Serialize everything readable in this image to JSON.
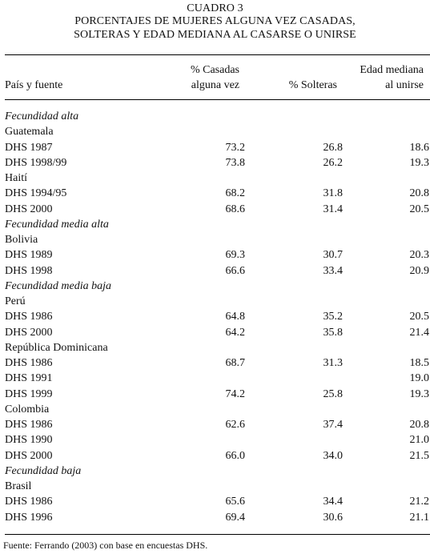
{
  "title": {
    "line1": "CUADRO 3",
    "line2": "PORCENTAJES DE MUJERES ALGUNA VEZ CASADAS,",
    "line3": "SOLTERAS Y EDAD MEDIANA AL CASARSE O UNIRSE"
  },
  "headers": {
    "col0": "País y fuente",
    "col1_line1": "% Casadas",
    "col1_line2": "alguna vez",
    "col2": "% Solteras",
    "col3_line1": "Edad mediana",
    "col3_line2": "al unirse"
  },
  "rows": [
    {
      "type": "group",
      "label": "Fecundidad alta",
      "v1": "",
      "v2": "",
      "v3": ""
    },
    {
      "type": "country",
      "label": "Guatemala",
      "v1": "",
      "v2": "",
      "v3": ""
    },
    {
      "type": "data",
      "label": "DHS 1987",
      "v1": "73.2",
      "v2": "26.8",
      "v3": "18.6"
    },
    {
      "type": "data",
      "label": "DHS 1998/99",
      "v1": "73.8",
      "v2": "26.2",
      "v3": "19.3"
    },
    {
      "type": "country",
      "label": "Haití",
      "v1": "",
      "v2": "",
      "v3": ""
    },
    {
      "type": "data",
      "label": "DHS 1994/95",
      "v1": "68.2",
      "v2": "31.8",
      "v3": "20.8"
    },
    {
      "type": "data",
      "label": "DHS 2000",
      "v1": "68.6",
      "v2": "31.4",
      "v3": "20.5"
    },
    {
      "type": "group",
      "label": "Fecundidad media alta",
      "v1": "",
      "v2": "",
      "v3": ""
    },
    {
      "type": "country",
      "label": "Bolivia",
      "v1": "",
      "v2": "",
      "v3": ""
    },
    {
      "type": "data",
      "label": "DHS 1989",
      "v1": "69.3",
      "v2": "30.7",
      "v3": "20.3"
    },
    {
      "type": "data",
      "label": "DHS 1998",
      "v1": "66.6",
      "v2": "33.4",
      "v3": "20.9"
    },
    {
      "type": "group",
      "label": "Fecundidad media baja",
      "v1": "",
      "v2": "",
      "v3": ""
    },
    {
      "type": "country",
      "label": "Perú",
      "v1": "",
      "v2": "",
      "v3": ""
    },
    {
      "type": "data",
      "label": "DHS 1986",
      "v1": "64.8",
      "v2": "35.2",
      "v3": "20.5"
    },
    {
      "type": "data",
      "label": "DHS 2000",
      "v1": "64.2",
      "v2": "35.8",
      "v3": "21.4"
    },
    {
      "type": "country",
      "label": "República Dominicana",
      "v1": "",
      "v2": "",
      "v3": ""
    },
    {
      "type": "data",
      "label": "DHS 1986",
      "v1": "68.7",
      "v2": "31.3",
      "v3": "18.5"
    },
    {
      "type": "data",
      "label": "DHS 1991",
      "v1": "",
      "v2": "",
      "v3": "19.0"
    },
    {
      "type": "data",
      "label": "DHS 1999",
      "v1": "74.2",
      "v2": "25.8",
      "v3": "19.3"
    },
    {
      "type": "country",
      "label": "Colombia",
      "v1": "",
      "v2": "",
      "v3": ""
    },
    {
      "type": "data",
      "label": "DHS 1986",
      "v1": "62.6",
      "v2": "37.4",
      "v3": "20.8"
    },
    {
      "type": "data",
      "label": "DHS 1990",
      "v1": "",
      "v2": "",
      "v3": "21.0"
    },
    {
      "type": "data",
      "label": "DHS 2000",
      "v1": "66.0",
      "v2": "34.0",
      "v3": "21.5"
    },
    {
      "type": "group",
      "label": "Fecundidad baja",
      "v1": "",
      "v2": "",
      "v3": ""
    },
    {
      "type": "country",
      "label": "Brasil",
      "v1": "",
      "v2": "",
      "v3": ""
    },
    {
      "type": "data",
      "label": "DHS 1986",
      "v1": "65.6",
      "v2": "34.4",
      "v3": "21.2"
    },
    {
      "type": "data",
      "label": "DHS 1996",
      "v1": "69.4",
      "v2": "30.6",
      "v3": "21.1"
    }
  ],
  "footer": "Fuente: Ferrando (2003) con base en encuestas DHS."
}
